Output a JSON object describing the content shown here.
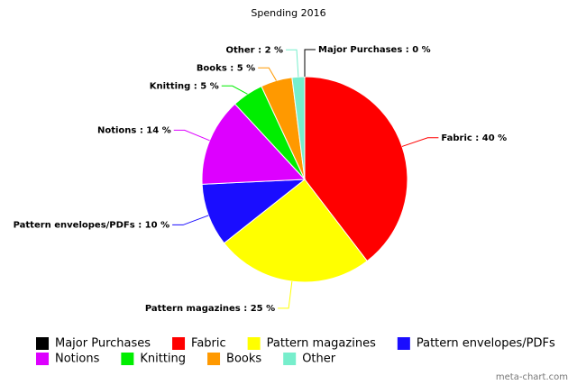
{
  "chart_data": {
    "type": "pie",
    "title": "Spending 2016",
    "categories": [
      "Major Purchases",
      "Fabric",
      "Pattern magazines",
      "Pattern envelopes/PDFs",
      "Notions",
      "Knitting",
      "Books",
      "Other"
    ],
    "values": [
      0,
      40,
      25,
      10,
      14,
      5,
      5,
      2
    ],
    "value_labels": [
      "Major Purchases : 0 %",
      "Fabric : 40 %",
      "Pattern magazines : 25 %",
      "Pattern envelopes/PDFs : 10 %",
      "Notions : 14 %",
      "Knitting : 5 %",
      "Books : 5 %",
      "Other : 2 %"
    ],
    "colors": [
      "#000000",
      "#ff0000",
      "#ffff00",
      "#1a0dff",
      "#dd00ff",
      "#00ee00",
      "#ff9900",
      "#77eecc"
    ],
    "legend": "bottom",
    "watermark": "meta-chart.com"
  }
}
